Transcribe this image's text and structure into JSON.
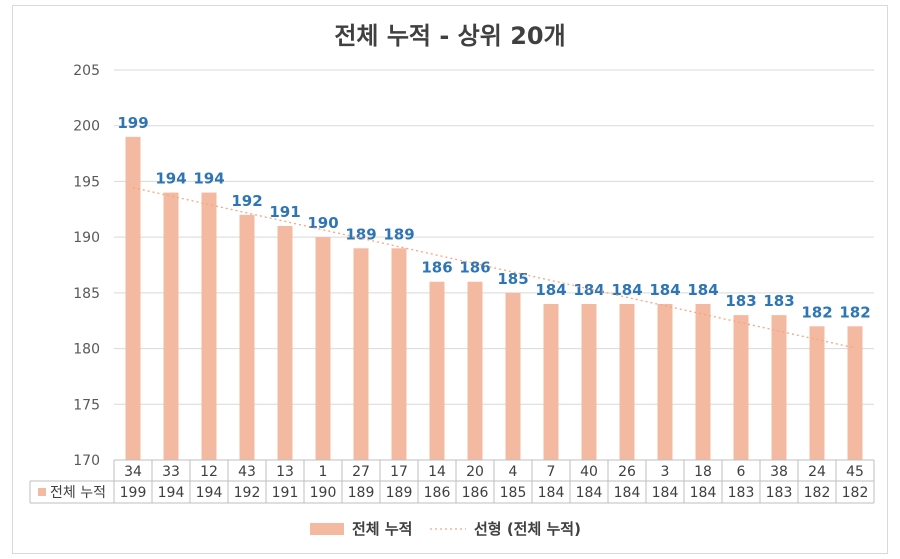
{
  "chart_data": {
    "type": "bar",
    "title": "전체 누적 - 상위 20개",
    "categories": [
      "34",
      "33",
      "12",
      "43",
      "13",
      "1",
      "27",
      "17",
      "14",
      "20",
      "4",
      "7",
      "40",
      "26",
      "3",
      "18",
      "6",
      "38",
      "24",
      "45"
    ],
    "series": [
      {
        "name": "전체 누적",
        "values": [
          199,
          194,
          194,
          192,
          191,
          190,
          189,
          189,
          186,
          186,
          185,
          184,
          184,
          184,
          184,
          184,
          183,
          183,
          182,
          182
        ],
        "color": "#f4b9a1"
      }
    ],
    "trendline": {
      "name": "선형 (전체 누적)",
      "type": "linear",
      "color": "#f4a582"
    },
    "ylim": [
      170,
      205
    ],
    "yticks": [
      170,
      175,
      180,
      185,
      190,
      195,
      200,
      205
    ],
    "grid": true,
    "data_table": true,
    "legend": "bottom"
  }
}
